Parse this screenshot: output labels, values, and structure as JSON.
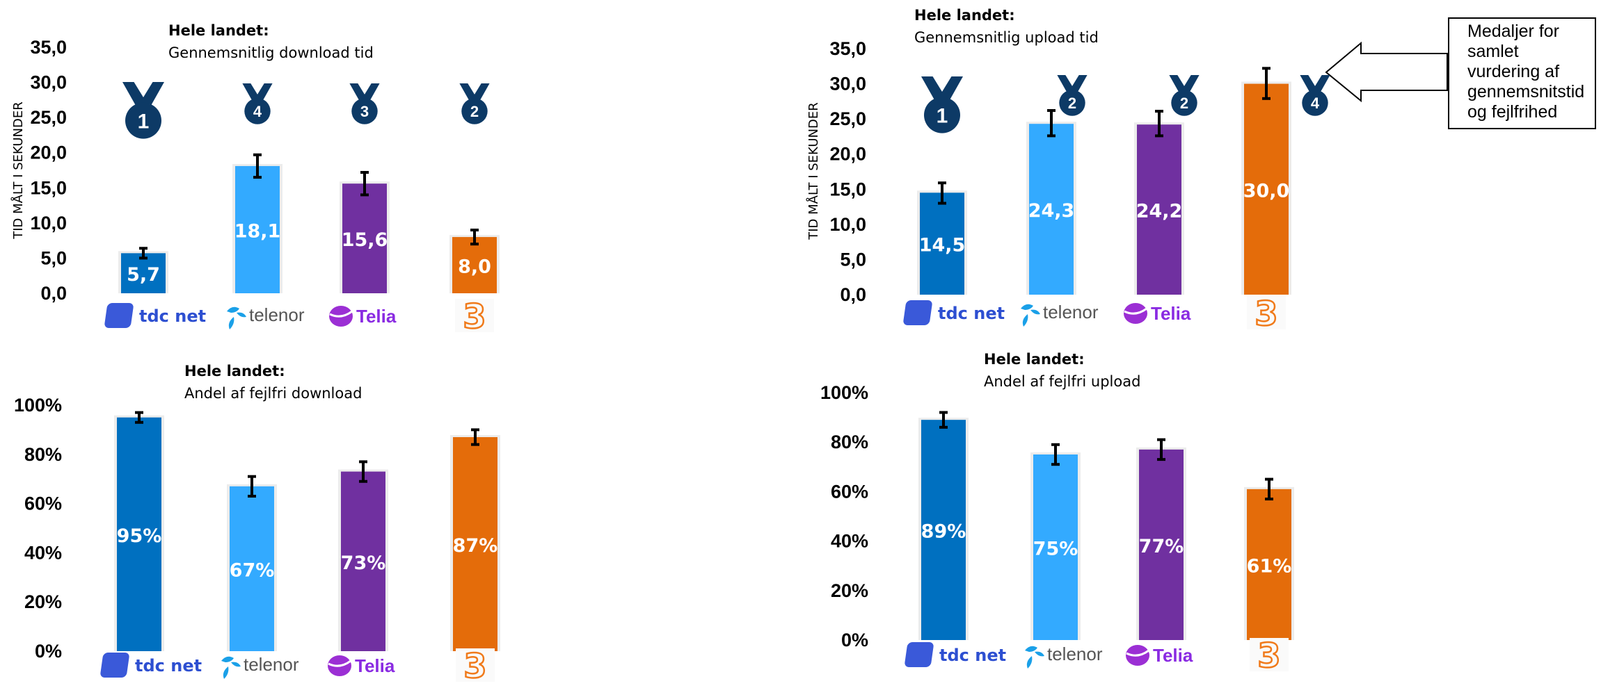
{
  "colors": {
    "tdc": "#0070c0",
    "telenor": "#33aaff",
    "telia": "#7030a0",
    "three": "#e46c0a",
    "medal": "#0d3a66",
    "error_bar": "#000000"
  },
  "operators": [
    {
      "key": "tdc",
      "label": "tdc net",
      "icon": "tdc-net-logo"
    },
    {
      "key": "telenor",
      "label": "telenor",
      "icon": "telenor-logo"
    },
    {
      "key": "telia",
      "label": "Telia",
      "icon": "telia-logo"
    },
    {
      "key": "three",
      "label": "3",
      "icon": "three-logo"
    }
  ],
  "note": {
    "lines": [
      "Medaljer for",
      "samlet",
      "vurdering af",
      "gennemsnitstid",
      "og fejlfrihed"
    ]
  },
  "chart_data": [
    {
      "type": "bar",
      "title": "Hele landet:",
      "subtitle": "Gennemsnitlig download tid",
      "ylabel": "TID MÅLT I SEKUNDER",
      "categories": [
        "tdc net",
        "telenor",
        "Telia",
        "3"
      ],
      "values": [
        5.7,
        18.1,
        15.6,
        8.0
      ],
      "value_labels": [
        "5,7",
        "18,1",
        "15,6",
        "8,0"
      ],
      "error_low": [
        5.0,
        16.5,
        14.0,
        7.0
      ],
      "error_high": [
        6.4,
        19.7,
        17.2,
        9.0
      ],
      "ylim": [
        0,
        35
      ],
      "yticks": [
        "0,0",
        "5,0",
        "10,0",
        "15,0",
        "20,0",
        "25,0",
        "30,0",
        "35,0"
      ],
      "medals": [
        "1",
        "4",
        "3",
        "2"
      ],
      "grid": false
    },
    {
      "type": "bar",
      "title": "Hele landet:",
      "subtitle": "Gennemsnitlig upload tid",
      "ylabel": "TID MÅLT I SEKUNDER",
      "categories": [
        "tdc net",
        "telenor",
        "Telia",
        "3"
      ],
      "values": [
        14.5,
        24.3,
        24.2,
        30.0
      ],
      "value_labels": [
        "14,5",
        "24,3",
        "24,2",
        "30,0"
      ],
      "error_low": [
        13.0,
        22.6,
        22.6,
        27.9
      ],
      "error_high": [
        15.9,
        26.2,
        26.1,
        32.2
      ],
      "ylim": [
        0,
        35
      ],
      "yticks": [
        "0,0",
        "5,0",
        "10,0",
        "15,0",
        "20,0",
        "25,0",
        "30,0",
        "35,0"
      ],
      "medals": [
        "1",
        "2",
        "2",
        "4"
      ],
      "grid": false
    },
    {
      "type": "bar",
      "title": "Hele landet:",
      "subtitle": "Andel af fejlfri download",
      "ylabel": "",
      "categories": [
        "tdc net",
        "telenor",
        "Telia",
        "3"
      ],
      "values": [
        95,
        67,
        73,
        87
      ],
      "value_labels": [
        "95%",
        "67%",
        "73%",
        "87%"
      ],
      "error_low": [
        93,
        63,
        69,
        84
      ],
      "error_high": [
        97,
        71,
        77,
        90
      ],
      "ylim": [
        0,
        100
      ],
      "yticks": [
        "0%",
        "20%",
        "40%",
        "60%",
        "80%",
        "100%"
      ],
      "medals": [],
      "grid": false
    },
    {
      "type": "bar",
      "title": "Hele landet:",
      "subtitle": "Andel af fejlfri upload",
      "ylabel": "",
      "categories": [
        "tdc net",
        "telenor",
        "Telia",
        "3"
      ],
      "values": [
        89,
        75,
        77,
        61
      ],
      "value_labels": [
        "89%",
        "75%",
        "77%",
        "61%"
      ],
      "error_low": [
        86,
        71,
        73,
        57
      ],
      "error_high": [
        92,
        79,
        81,
        65
      ],
      "ylim": [
        0,
        100
      ],
      "yticks": [
        "0%",
        "20%",
        "40%",
        "60%",
        "80%",
        "100%"
      ],
      "medals": [],
      "grid": false
    }
  ]
}
